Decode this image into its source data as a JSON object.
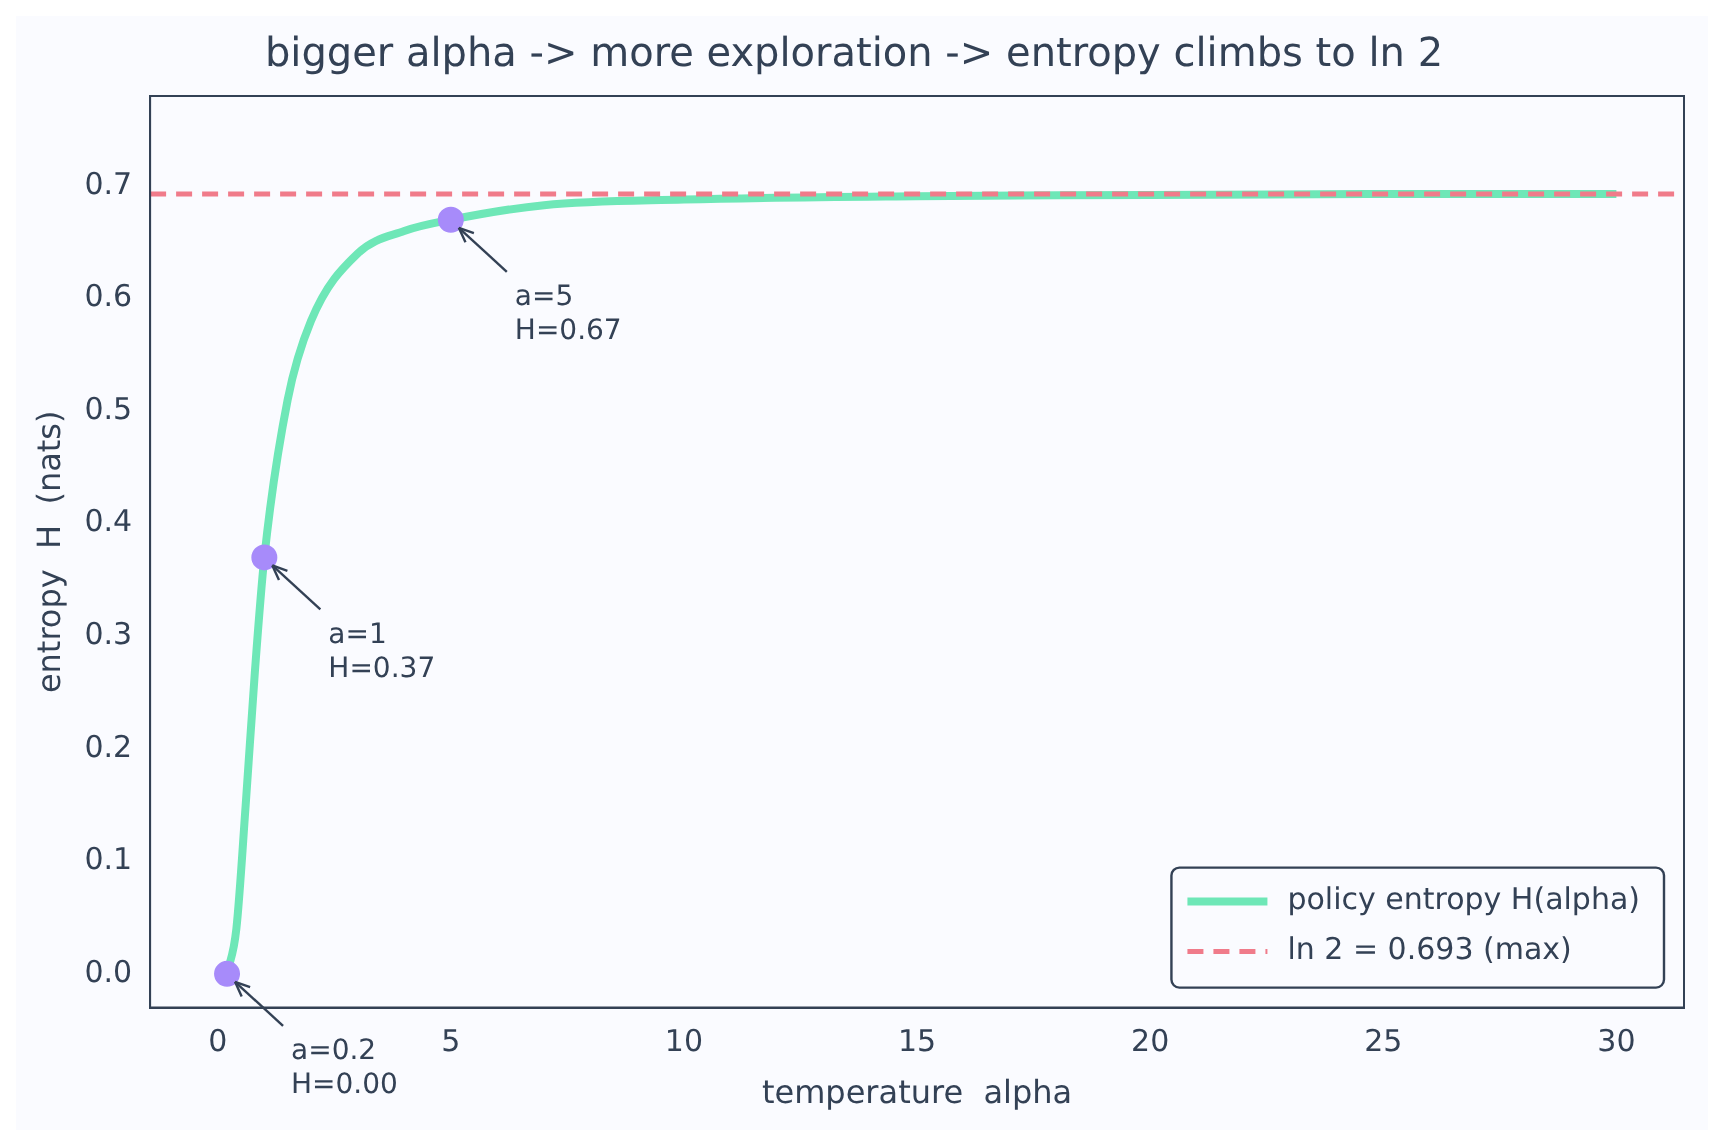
{
  "chart_data": {
    "type": "line",
    "title": "bigger alpha -> more exploration -> entropy climbs to ln 2",
    "xlabel": "temperature  alpha",
    "ylabel": "entropy  H  (nats)",
    "series": [
      {
        "name": "policy entropy H(alpha)",
        "color": "#6ee7b7",
        "x": [
          0.2,
          0.4,
          0.6,
          0.8,
          1,
          1.5,
          2,
          3,
          4,
          5,
          7,
          10,
          15,
          20,
          25,
          30
        ],
        "values": [
          0.0,
          0.04,
          0.15,
          0.27,
          0.37,
          0.51,
          0.58,
          0.64,
          0.66,
          0.67,
          0.683,
          0.688,
          0.691,
          0.692,
          0.693,
          0.693
        ]
      },
      {
        "type": "scatter",
        "color": "#a78bfa",
        "x": [
          0.2,
          1,
          5
        ],
        "values": [
          0.0,
          0.37,
          0.67
        ],
        "marker": "circle"
      }
    ],
    "ref_lines": [
      {
        "axis": "y",
        "value": 0.693,
        "label": "ln 2 = 0.693 (max)",
        "color": "#f07b8a",
        "line_style": "dashed"
      }
    ],
    "annotations": [
      {
        "text": "a=0.2\nH=0.00",
        "x": 0.2,
        "y": 0.0
      },
      {
        "text": "a=1\nH=0.37",
        "x": 1,
        "y": 0.37
      },
      {
        "text": "a=5\nH=0.67",
        "x": 5,
        "y": 0.67
      }
    ],
    "xlim": [
      -1.45,
      31.45
    ],
    "ylim": [
      -0.03,
      0.78
    ],
    "xticks": [
      0,
      5,
      10,
      15,
      20,
      25,
      30
    ],
    "yticks": [
      {
        "value": 0,
        "label": "0.0"
      },
      0.1,
      0.2,
      0.3,
      0.4,
      0.5,
      0.6,
      0.7
    ],
    "grid": false,
    "legend": "bottom right",
    "line_style": "solid"
  }
}
